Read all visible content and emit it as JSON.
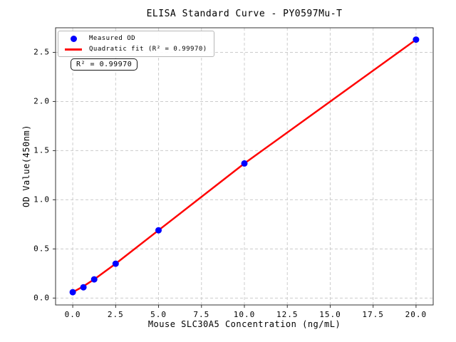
{
  "chart_data": {
    "type": "scatter",
    "title": "ELISA Standard Curve - PY0597Mu-T",
    "xlabel": "Mouse SLC30A5 Concentration (ng/mL)",
    "ylabel": "OD Value(450nm)",
    "xlim": [
      -1,
      21
    ],
    "ylim": [
      -0.07,
      2.75
    ],
    "x_ticks": [
      0,
      2.5,
      5,
      7.5,
      10,
      12.5,
      15,
      17.5,
      20
    ],
    "x_tick_labels": [
      "0.0",
      "2.5",
      "5.0",
      "7.5",
      "10.0",
      "12.5",
      "15.0",
      "17.5",
      "20.0"
    ],
    "y_ticks": [
      0,
      0.5,
      1,
      1.5,
      2,
      2.5
    ],
    "y_tick_labels": [
      "0.0",
      "0.5",
      "1.0",
      "1.5",
      "2.0",
      "2.5"
    ],
    "grid": true,
    "grid_style": "dashed",
    "legend_position": "upper-left",
    "annotation": "R² = 0.99970",
    "series": [
      {
        "name": "Measured OD",
        "type": "scatter",
        "color": "#0000ff",
        "x": [
          0,
          0.625,
          1.25,
          2.5,
          5,
          10,
          20
        ],
        "y": [
          0.06,
          0.11,
          0.19,
          0.35,
          0.69,
          1.37,
          2.63
        ]
      },
      {
        "name": "Quadratic fit (R² = 0.99970)",
        "type": "line",
        "color": "#ff0000",
        "x": [
          0,
          0.625,
          1.25,
          2.5,
          5,
          10,
          20
        ],
        "y": [
          0.06,
          0.12,
          0.19,
          0.35,
          0.69,
          1.37,
          2.63
        ]
      }
    ],
    "colors": {
      "grid": "#cccccc",
      "spine": "#333333",
      "text": "#000000"
    }
  }
}
